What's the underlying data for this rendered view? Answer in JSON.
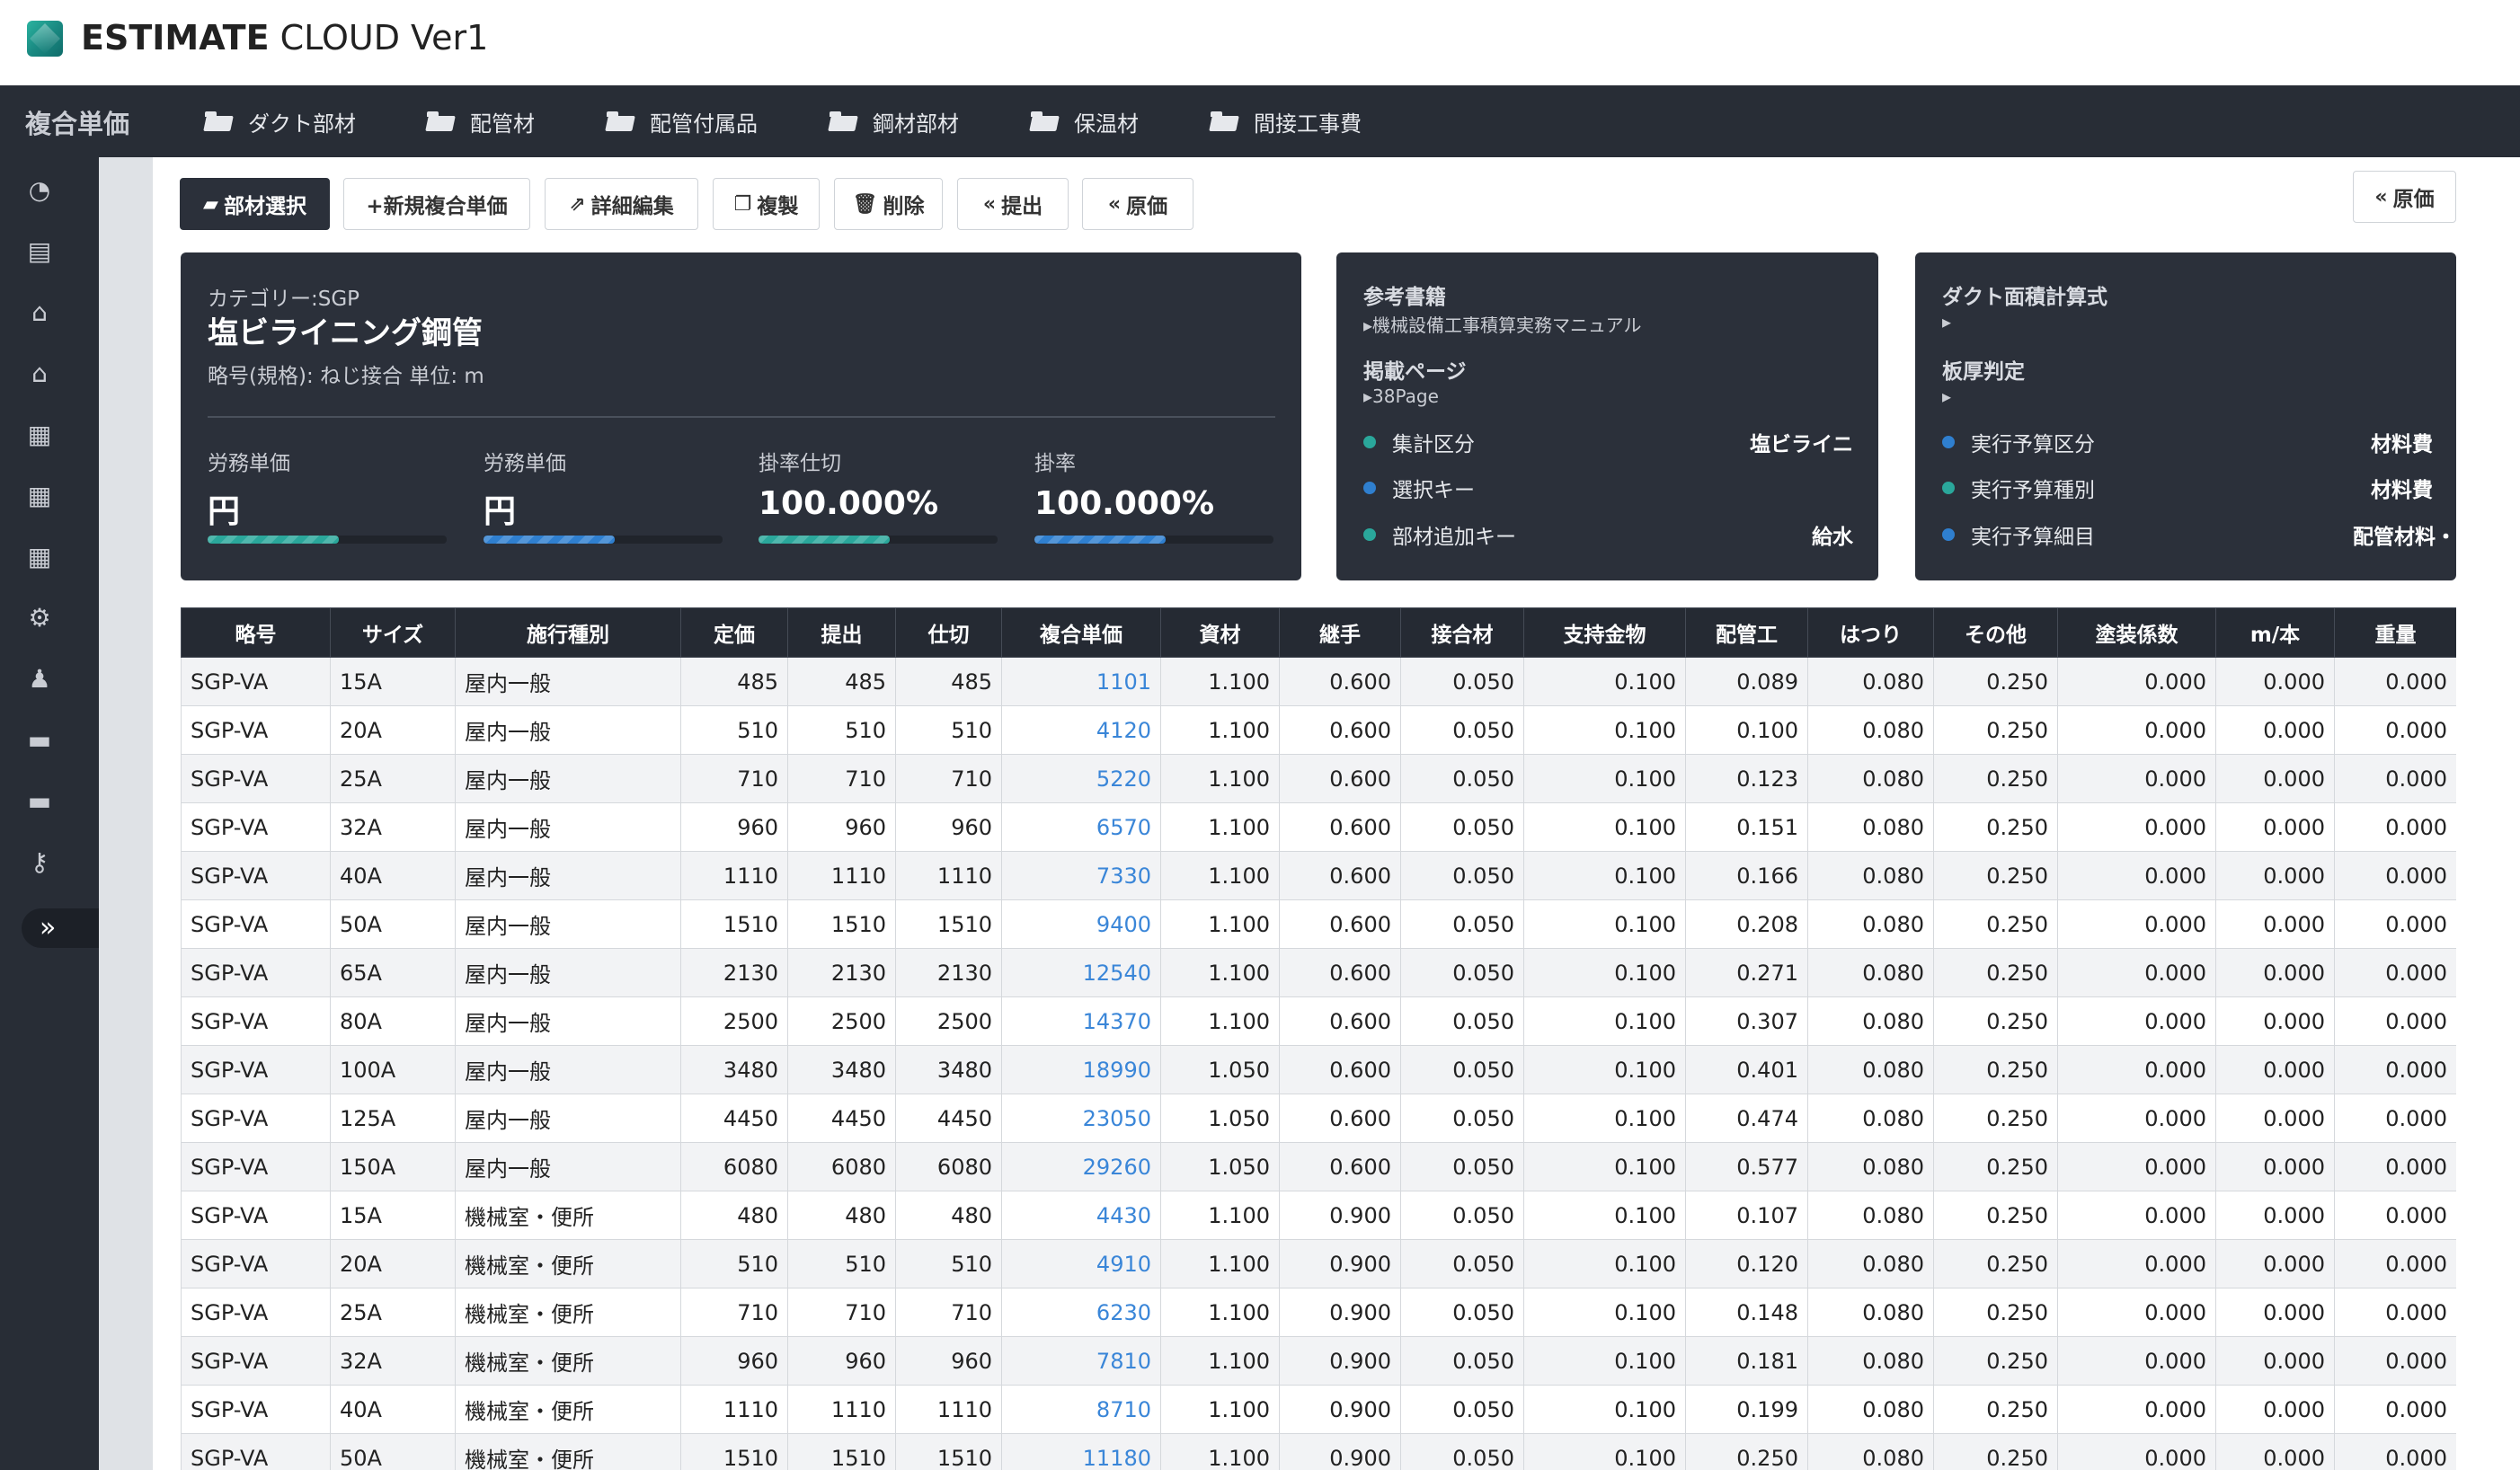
{
  "app": {
    "title_bold": "ESTIMATE",
    "title_rest": " CLOUD Ver1"
  },
  "nav": {
    "brand": "複合単価",
    "items": [
      {
        "label": "ダクト部材"
      },
      {
        "label": "配管材"
      },
      {
        "label": "配管付属品"
      },
      {
        "label": "鋼材部材"
      },
      {
        "label": "保温材"
      },
      {
        "label": "間接工事費"
      }
    ]
  },
  "sidebar": {
    "icons": [
      "pie-chart-icon",
      "printer-icon",
      "bank-icon",
      "bank-icon",
      "table-icon",
      "table-icon",
      "table-icon",
      "gears-icon",
      "users-icon",
      "drive-icon",
      "drive-icon",
      "key-icon"
    ],
    "toggle_icon": "double-chevron-right-icon",
    "toggle_glyph": "»"
  },
  "toolbar": {
    "select_parts": "部材選択",
    "new_composite": "+新規複合単価",
    "edit_detail": "詳細編集",
    "duplicate": "複製",
    "delete": "削除",
    "submit": "提出",
    "cost": "原価",
    "cost_right": "原価"
  },
  "main_card": {
    "category": "カテゴリー:SGP",
    "title": "塩ビライニング鋼管",
    "subtitle": "略号(規格): ねじ接合 単位: m",
    "metrics": [
      {
        "label": "労務単価",
        "value": "円",
        "progress": 0.55,
        "color": "#2aa79b"
      },
      {
        "label": "労務単価",
        "value": "円",
        "progress": 0.55,
        "color": "#2f7fcf"
      },
      {
        "label": "掛率仕切",
        "value": "100.000%",
        "progress": 0.55,
        "color": "#2aa79b"
      },
      {
        "label": "掛率",
        "value": "100.000%",
        "progress": 0.55,
        "color": "#2f7fcf"
      }
    ]
  },
  "ref_card": {
    "book_label": "参考書籍",
    "book_value": "▸機械設備工事積算実務マニュアル",
    "page_label": "掲載ページ",
    "page_value": "▸38Page",
    "rows": [
      {
        "key": "集計区分",
        "value": "塩ビライニ",
        "color": "#2aa79b"
      },
      {
        "key": "選択キー",
        "value": "",
        "color": "#2f7fcf"
      },
      {
        "key": "部材追加キー",
        "value": "給水",
        "color": "#2aa79b"
      }
    ]
  },
  "duct_card": {
    "formula_label": "ダクト面積計算式",
    "formula_value": "▸",
    "thickness_label": "板厚判定",
    "thickness_value": "▸",
    "rows": [
      {
        "key": "実行予算区分",
        "value": "材料費",
        "color": "#2f7fcf"
      },
      {
        "key": "実行予算種別",
        "value": "材料費",
        "color": "#2aa79b"
      },
      {
        "key": "実行予算細目",
        "value": "配管材料・",
        "color": "#2f7fcf"
      }
    ]
  },
  "table": {
    "columns": [
      "略号",
      "サイズ",
      "施行種別",
      "定価",
      "提出",
      "仕切",
      "複合単価",
      "資材",
      "継手",
      "接合材",
      "支持金物",
      "配管工",
      "はつり",
      "その他",
      "塗装係数",
      "m/本",
      "重量"
    ],
    "rows": [
      [
        "SGP-VA",
        "15A",
        "屋内一般",
        "485",
        "485",
        "485",
        "1101",
        "1.100",
        "0.600",
        "0.050",
        "0.100",
        "0.089",
        "0.080",
        "0.250",
        "0.000",
        "0.000",
        "0.000"
      ],
      [
        "SGP-VA",
        "20A",
        "屋内一般",
        "510",
        "510",
        "510",
        "4120",
        "1.100",
        "0.600",
        "0.050",
        "0.100",
        "0.100",
        "0.080",
        "0.250",
        "0.000",
        "0.000",
        "0.000"
      ],
      [
        "SGP-VA",
        "25A",
        "屋内一般",
        "710",
        "710",
        "710",
        "5220",
        "1.100",
        "0.600",
        "0.050",
        "0.100",
        "0.123",
        "0.080",
        "0.250",
        "0.000",
        "0.000",
        "0.000"
      ],
      [
        "SGP-VA",
        "32A",
        "屋内一般",
        "960",
        "960",
        "960",
        "6570",
        "1.100",
        "0.600",
        "0.050",
        "0.100",
        "0.151",
        "0.080",
        "0.250",
        "0.000",
        "0.000",
        "0.000"
      ],
      [
        "SGP-VA",
        "40A",
        "屋内一般",
        "1110",
        "1110",
        "1110",
        "7330",
        "1.100",
        "0.600",
        "0.050",
        "0.100",
        "0.166",
        "0.080",
        "0.250",
        "0.000",
        "0.000",
        "0.000"
      ],
      [
        "SGP-VA",
        "50A",
        "屋内一般",
        "1510",
        "1510",
        "1510",
        "9400",
        "1.100",
        "0.600",
        "0.050",
        "0.100",
        "0.208",
        "0.080",
        "0.250",
        "0.000",
        "0.000",
        "0.000"
      ],
      [
        "SGP-VA",
        "65A",
        "屋内一般",
        "2130",
        "2130",
        "2130",
        "12540",
        "1.100",
        "0.600",
        "0.050",
        "0.100",
        "0.271",
        "0.080",
        "0.250",
        "0.000",
        "0.000",
        "0.000"
      ],
      [
        "SGP-VA",
        "80A",
        "屋内一般",
        "2500",
        "2500",
        "2500",
        "14370",
        "1.100",
        "0.600",
        "0.050",
        "0.100",
        "0.307",
        "0.080",
        "0.250",
        "0.000",
        "0.000",
        "0.000"
      ],
      [
        "SGP-VA",
        "100A",
        "屋内一般",
        "3480",
        "3480",
        "3480",
        "18990",
        "1.050",
        "0.600",
        "0.050",
        "0.100",
        "0.401",
        "0.080",
        "0.250",
        "0.000",
        "0.000",
        "0.000"
      ],
      [
        "SGP-VA",
        "125A",
        "屋内一般",
        "4450",
        "4450",
        "4450",
        "23050",
        "1.050",
        "0.600",
        "0.050",
        "0.100",
        "0.474",
        "0.080",
        "0.250",
        "0.000",
        "0.000",
        "0.000"
      ],
      [
        "SGP-VA",
        "150A",
        "屋内一般",
        "6080",
        "6080",
        "6080",
        "29260",
        "1.050",
        "0.600",
        "0.050",
        "0.100",
        "0.577",
        "0.080",
        "0.250",
        "0.000",
        "0.000",
        "0.000"
      ],
      [
        "SGP-VA",
        "15A",
        "機械室・便所",
        "480",
        "480",
        "480",
        "4430",
        "1.100",
        "0.900",
        "0.050",
        "0.100",
        "0.107",
        "0.080",
        "0.250",
        "0.000",
        "0.000",
        "0.000"
      ],
      [
        "SGP-VA",
        "20A",
        "機械室・便所",
        "510",
        "510",
        "510",
        "4910",
        "1.100",
        "0.900",
        "0.050",
        "0.100",
        "0.120",
        "0.080",
        "0.250",
        "0.000",
        "0.000",
        "0.000"
      ],
      [
        "SGP-VA",
        "25A",
        "機械室・便所",
        "710",
        "710",
        "710",
        "6230",
        "1.100",
        "0.900",
        "0.050",
        "0.100",
        "0.148",
        "0.080",
        "0.250",
        "0.000",
        "0.000",
        "0.000"
      ],
      [
        "SGP-VA",
        "32A",
        "機械室・便所",
        "960",
        "960",
        "960",
        "7810",
        "1.100",
        "0.900",
        "0.050",
        "0.100",
        "0.181",
        "0.080",
        "0.250",
        "0.000",
        "0.000",
        "0.000"
      ],
      [
        "SGP-VA",
        "40A",
        "機械室・便所",
        "1110",
        "1110",
        "1110",
        "8710",
        "1.100",
        "0.900",
        "0.050",
        "0.100",
        "0.199",
        "0.080",
        "0.250",
        "0.000",
        "0.000",
        "0.000"
      ],
      [
        "SGP-VA",
        "50A",
        "機械室・便所",
        "1510",
        "1510",
        "1510",
        "11180",
        "1.100",
        "0.900",
        "0.050",
        "0.100",
        "0.250",
        "0.080",
        "0.250",
        "0.000",
        "0.000",
        "0.000"
      ]
    ]
  }
}
